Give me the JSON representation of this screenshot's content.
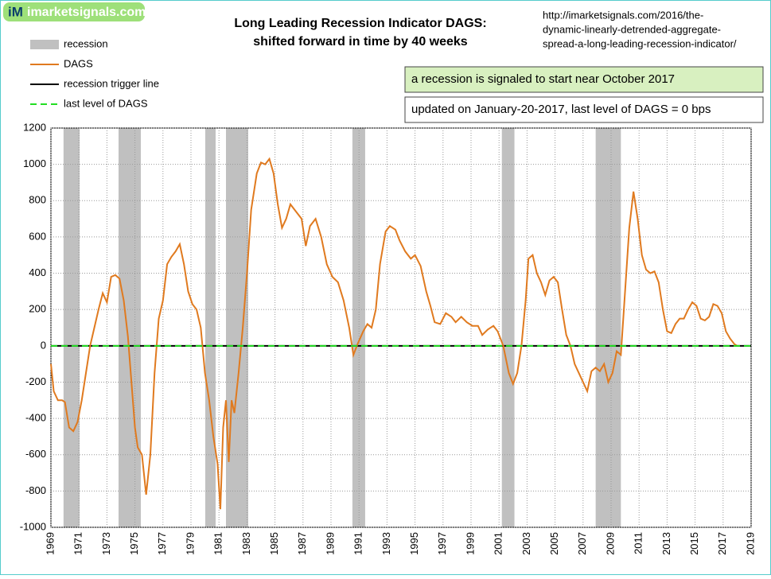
{
  "chart_data": {
    "type": "line",
    "logo": {
      "badge": "iM",
      "text": "imarketsignals.com"
    },
    "title": [
      "Long Leading Recession Indicator DAGS:",
      "shifted forward in time by 40 weeks"
    ],
    "url": [
      "http://imarketsignals.com/2016/the-",
      "dynamic-linearly-detrended-aggregate-",
      "spread-a-long-leading-recession-indicator/"
    ],
    "annotations": [
      "a recession is signaled to start near October 2017",
      "updated on January-20-2017,  last level of DAGS = 0 bps"
    ],
    "xlim": [
      1969,
      2019
    ],
    "xticks": [
      1969,
      1971,
      1973,
      1975,
      1977,
      1979,
      1981,
      1983,
      1985,
      1987,
      1989,
      1991,
      1993,
      1995,
      1997,
      1999,
      2001,
      2003,
      2005,
      2007,
      2009,
      2011,
      2013,
      2015,
      2017,
      2019
    ],
    "ylim": [
      -1000,
      1200
    ],
    "yticks": [
      -1000,
      -800,
      -600,
      -400,
      -200,
      0,
      200,
      400,
      600,
      800,
      1000,
      1200
    ],
    "grid": true,
    "recessions": {
      "name": "recession",
      "color": "#c0c0c0",
      "spans": [
        [
          1969.9,
          1971.05
        ],
        [
          1973.83,
          1975.42
        ],
        [
          1980.02,
          1980.76
        ],
        [
          1981.5,
          1983.09
        ],
        [
          1990.53,
          1991.44
        ],
        [
          2001.2,
          2002.1
        ],
        [
          2007.9,
          2009.7
        ]
      ]
    },
    "dags": {
      "name": "DAGS",
      "color": "#e07a1f",
      "x": [
        1969.0,
        1969.2,
        1969.5,
        1969.8,
        1970.0,
        1970.3,
        1970.6,
        1970.9,
        1971.2,
        1971.5,
        1971.8,
        1972.1,
        1972.4,
        1972.7,
        1973.0,
        1973.3,
        1973.6,
        1973.9,
        1974.2,
        1974.5,
        1974.8,
        1975.0,
        1975.2,
        1975.5,
        1975.8,
        1976.1,
        1976.4,
        1976.7,
        1977.0,
        1977.3,
        1977.6,
        1977.9,
        1978.2,
        1978.5,
        1978.8,
        1979.1,
        1979.4,
        1979.7,
        1980.0,
        1980.3,
        1980.6,
        1980.9,
        1981.1,
        1981.3,
        1981.5,
        1981.7,
        1981.9,
        1982.1,
        1982.4,
        1982.7,
        1983.0,
        1983.3,
        1983.7,
        1984.0,
        1984.3,
        1984.6,
        1984.9,
        1985.2,
        1985.5,
        1985.8,
        1986.1,
        1986.5,
        1986.9,
        1987.2,
        1987.5,
        1987.9,
        1988.3,
        1988.7,
        1989.1,
        1989.5,
        1989.9,
        1990.3,
        1990.6,
        1990.9,
        1991.3,
        1991.6,
        1991.9,
        1992.2,
        1992.5,
        1992.9,
        1993.2,
        1993.6,
        1993.9,
        1994.3,
        1994.7,
        1995.0,
        1995.4,
        1995.8,
        1996.1,
        1996.4,
        1996.8,
        1997.2,
        1997.6,
        1997.9,
        1998.3,
        1998.7,
        1999.1,
        1999.5,
        1999.8,
        2000.2,
        2000.6,
        2000.9,
        2001.3,
        2001.7,
        2002.0,
        2002.3,
        2002.6,
        2002.9,
        2003.1,
        2003.4,
        2003.7,
        2004.0,
        2004.3,
        2004.6,
        2004.9,
        2005.2,
        2005.5,
        2005.8,
        2006.1,
        2006.4,
        2006.7,
        2007.0,
        2007.3,
        2007.6,
        2007.9,
        2008.2,
        2008.5,
        2008.8,
        2009.1,
        2009.4,
        2009.7,
        2010.0,
        2010.3,
        2010.6,
        2010.9,
        2011.2,
        2011.5,
        2011.8,
        2012.1,
        2012.4,
        2012.7,
        2013.0,
        2013.3,
        2013.6,
        2013.9,
        2014.2,
        2014.5,
        2014.8,
        2015.1,
        2015.4,
        2015.7,
        2016.0,
        2016.3,
        2016.6,
        2016.9,
        2017.2,
        2017.5,
        2017.8,
        2018.0
      ],
      "values": [
        -100,
        -250,
        -300,
        -300,
        -310,
        -450,
        -470,
        -420,
        -300,
        -150,
        0,
        100,
        200,
        290,
        240,
        380,
        390,
        370,
        250,
        50,
        -250,
        -450,
        -560,
        -600,
        -820,
        -600,
        -150,
        150,
        250,
        450,
        490,
        520,
        560,
        450,
        300,
        230,
        200,
        100,
        -150,
        -300,
        -500,
        -650,
        -900,
        -450,
        -300,
        -640,
        -300,
        -370,
        -150,
        100,
        400,
        750,
        950,
        1010,
        1000,
        1030,
        950,
        780,
        650,
        700,
        780,
        740,
        700,
        550,
        660,
        700,
        600,
        450,
        380,
        350,
        250,
        100,
        -50,
        10,
        80,
        120,
        100,
        200,
        450,
        630,
        660,
        640,
        580,
        520,
        480,
        500,
        440,
        300,
        220,
        130,
        120,
        180,
        160,
        130,
        160,
        130,
        110,
        110,
        60,
        90,
        110,
        80,
        0,
        -150,
        -210,
        -150,
        0,
        250,
        480,
        500,
        400,
        350,
        280,
        360,
        380,
        350,
        200,
        60,
        0,
        -100,
        -150,
        -200,
        -250,
        -140,
        -120,
        -140,
        -100,
        -200,
        -150,
        -30,
        -50,
        300,
        650,
        850,
        700,
        500,
        420,
        400,
        410,
        350,
        200,
        80,
        70,
        120,
        150,
        150,
        200,
        240,
        220,
        150,
        140,
        160,
        230,
        220,
        180,
        80,
        40,
        10,
        0
      ]
    },
    "hlines": [
      {
        "name": "recession trigger line",
        "color": "#000000",
        "value": 0,
        "dashed": false
      },
      {
        "name": "last level of DAGS",
        "color": "#22dd22",
        "value": 0,
        "dashed": true
      }
    ]
  }
}
